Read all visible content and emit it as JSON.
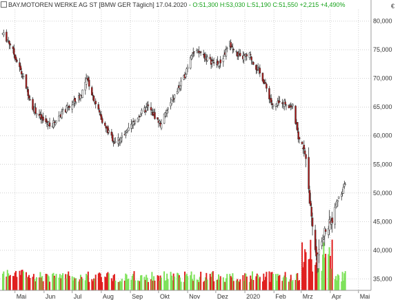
{
  "header": {
    "instrument": "BAY.MOTOREN WERKE AG ST",
    "meta": "[BMW GER  Täglich]",
    "date": "17.04.2020",
    "ohlc_text": "- O:51,300 H:53,030 L:51,190 C:51,550",
    "change_text": "+2,215 +4,490%"
  },
  "currency": "€",
  "colors": {
    "candle_up": "#ffffff",
    "candle_down": "#b01818",
    "wick": "#333333",
    "volume_up": "#7ee25a",
    "volume_down": "#e02020",
    "grid": "#cfcfcf",
    "change_positive": "#16a21a"
  },
  "chart_data": {
    "type": "candlestick",
    "title": "BAY.MOTOREN WERKE AG ST [BMW GER Täglich]",
    "y_axis": {
      "position": "right",
      "range": [
        33,
        82
      ],
      "ticks": [
        "35,000",
        "40,000",
        "45,000",
        "50,000",
        "55,000",
        "60,000",
        "65,000",
        "70,000",
        "75,000",
        "80,000"
      ]
    },
    "x_axis": {
      "labels": [
        "Mai",
        "Jun",
        "Jul",
        "Aug",
        "Sep",
        "Okt",
        "Nov",
        "Dez",
        "2020",
        "Feb",
        "Mrz",
        "Apr",
        "Mai"
      ]
    },
    "grid": true,
    "price_path_approx": [
      {
        "date": "2019-04-18",
        "close": 77.8
      },
      {
        "date": "2019-04-26",
        "close": 76.0
      },
      {
        "date": "2019-05-10",
        "close": 70.0
      },
      {
        "date": "2019-05-20",
        "close": 65.0
      },
      {
        "date": "2019-05-31",
        "close": 62.5
      },
      {
        "date": "2019-06-10",
        "close": 62.0
      },
      {
        "date": "2019-06-20",
        "close": 64.0
      },
      {
        "date": "2019-07-01",
        "close": 65.5
      },
      {
        "date": "2019-07-10",
        "close": 67.0
      },
      {
        "date": "2019-07-17",
        "close": 70.0
      },
      {
        "date": "2019-07-25",
        "close": 66.0
      },
      {
        "date": "2019-08-05",
        "close": 61.5
      },
      {
        "date": "2019-08-15",
        "close": 59.0
      },
      {
        "date": "2019-08-26",
        "close": 60.0
      },
      {
        "date": "2019-09-10",
        "close": 63.5
      },
      {
        "date": "2019-09-20",
        "close": 65.0
      },
      {
        "date": "2019-10-03",
        "close": 62.0
      },
      {
        "date": "2019-10-15",
        "close": 66.0
      },
      {
        "date": "2019-10-28",
        "close": 70.0
      },
      {
        "date": "2019-11-05",
        "close": 74.5
      },
      {
        "date": "2019-11-15",
        "close": 74.5
      },
      {
        "date": "2019-11-25",
        "close": 73.0
      },
      {
        "date": "2019-12-05",
        "close": 72.5
      },
      {
        "date": "2019-12-16",
        "close": 76.0
      },
      {
        "date": "2019-12-27",
        "close": 73.5
      },
      {
        "date": "2020-01-06",
        "close": 74.0
      },
      {
        "date": "2020-01-20",
        "close": 70.0
      },
      {
        "date": "2020-01-31",
        "close": 65.0
      },
      {
        "date": "2020-02-10",
        "close": 66.0
      },
      {
        "date": "2020-02-21",
        "close": 65.0
      },
      {
        "date": "2020-02-28",
        "close": 59.0
      },
      {
        "date": "2020-03-06",
        "close": 56.5
      },
      {
        "date": "2020-03-09",
        "close": 51.0
      },
      {
        "date": "2020-03-12",
        "close": 45.0
      },
      {
        "date": "2020-03-18",
        "close": 38.0
      },
      {
        "date": "2020-03-25",
        "close": 43.0
      },
      {
        "date": "2020-04-01",
        "close": 44.5
      },
      {
        "date": "2020-04-09",
        "close": 49.0
      },
      {
        "date": "2020-04-17",
        "close": 51.55
      }
    ],
    "volume": {
      "unit": "relative",
      "notes": "Volume bars in lower pane, green on up days, red on down days; spike around mid-March 2020"
    }
  }
}
